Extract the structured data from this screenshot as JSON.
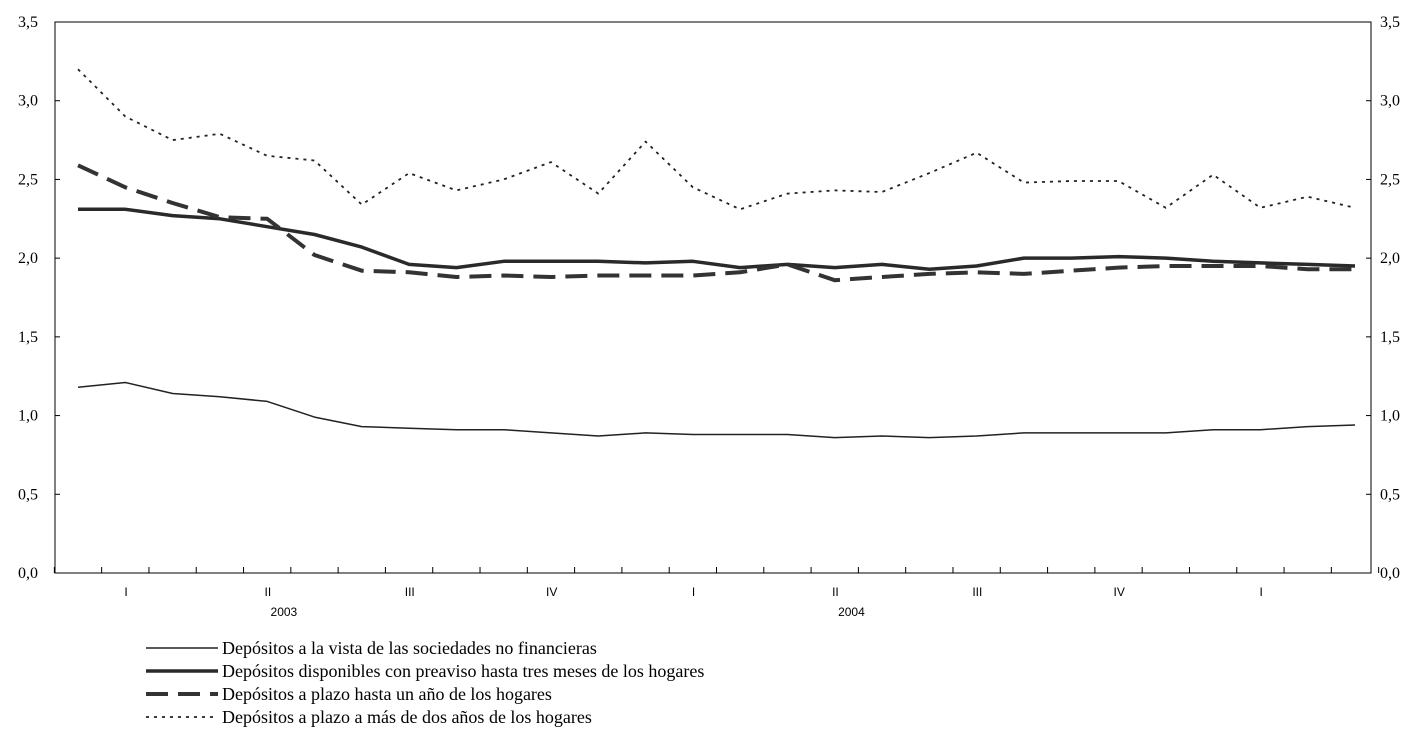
{
  "chart_data": {
    "type": "line",
    "title": "",
    "xlabel": "",
    "ylabel": "",
    "ylim": [
      0,
      3.5
    ],
    "y_ticks": [
      "0,0",
      "0,5",
      "1,0",
      "1,5",
      "2,0",
      "2,5",
      "3,0",
      "3,5"
    ],
    "y_tick_values": [
      0,
      0.5,
      1.0,
      1.5,
      2.0,
      2.5,
      3.0,
      3.5
    ],
    "grid": false,
    "legend_position": "bottom-left",
    "n_points": 28,
    "quarter_labels": [
      "I",
      "II",
      "III",
      "IV",
      "I",
      "II",
      "III",
      "IV",
      "I"
    ],
    "year_labels": [
      {
        "label": "2003",
        "quarter_index": 1
      },
      {
        "label": "2004",
        "quarter_index": 5
      }
    ],
    "series": [
      {
        "name": "Depósitos a la vista de las sociedades no financieras",
        "style": "thin",
        "color": "#222222",
        "values": [
          1.18,
          1.21,
          1.14,
          1.12,
          1.09,
          0.99,
          0.93,
          0.92,
          0.91,
          0.91,
          0.89,
          0.87,
          0.89,
          0.88,
          0.88,
          0.88,
          0.86,
          0.87,
          0.86,
          0.87,
          0.89,
          0.89,
          0.89,
          0.89,
          0.91,
          0.91,
          0.93,
          0.94
        ]
      },
      {
        "name": "Depósitos disponibles con preaviso hasta tres meses de los hogares",
        "style": "thick",
        "color": "#2a2a2a",
        "values": [
          2.31,
          2.31,
          2.27,
          2.25,
          2.2,
          2.15,
          2.07,
          1.96,
          1.94,
          1.98,
          1.98,
          1.98,
          1.97,
          1.98,
          1.94,
          1.96,
          1.94,
          1.96,
          1.93,
          1.95,
          2.0,
          2.0,
          2.01,
          2.0,
          1.98,
          1.97,
          1.96,
          1.95
        ]
      },
      {
        "name": "Depósitos a plazo hasta un año de los hogares",
        "style": "dashed",
        "color": "#333333",
        "values": [
          2.59,
          2.45,
          2.35,
          2.26,
          2.25,
          2.02,
          1.92,
          1.91,
          1.88,
          1.89,
          1.88,
          1.89,
          1.89,
          1.89,
          1.91,
          1.96,
          1.86,
          1.88,
          1.9,
          1.91,
          1.9,
          1.92,
          1.94,
          1.95,
          1.95,
          1.95,
          1.93,
          1.93
        ]
      },
      {
        "name": "Depósitos a plazo a más de dos años de los hogares",
        "style": "dotted",
        "color": "#222222",
        "values": [
          3.2,
          2.9,
          2.75,
          2.79,
          2.65,
          2.62,
          2.34,
          2.54,
          2.43,
          2.5,
          2.61,
          2.41,
          2.74,
          2.45,
          2.31,
          2.41,
          2.43,
          2.42,
          2.54,
          2.67,
          2.48,
          2.49,
          2.49,
          2.32,
          2.53,
          2.32,
          2.39,
          2.32
        ]
      }
    ]
  }
}
